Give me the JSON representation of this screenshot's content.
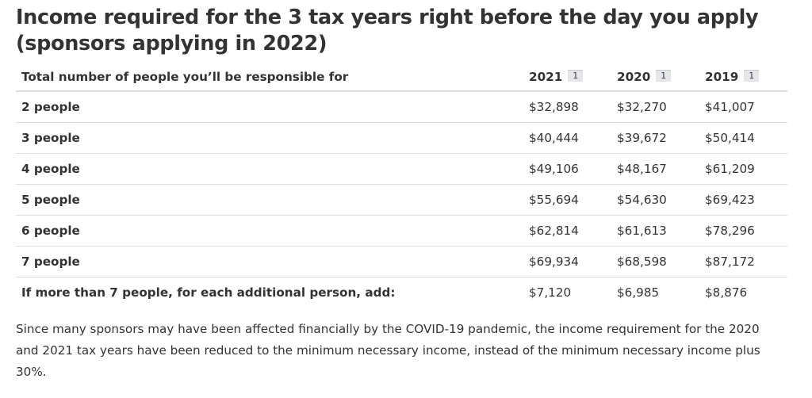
{
  "title": "Income required for the 3 tax years right before the day you apply (sponsors applying in 2022)",
  "table": {
    "header": {
      "label": "Total number of people you’ll be responsible for",
      "years": [
        {
          "year": "2021",
          "footnote": "1"
        },
        {
          "year": "2020",
          "footnote": "1"
        },
        {
          "year": "2019",
          "footnote": "1"
        }
      ]
    },
    "rows": [
      {
        "label": "2 people",
        "values": [
          "$32,898",
          "$32,270",
          "$41,007"
        ]
      },
      {
        "label": "3 people",
        "values": [
          "$40,444",
          "$39,672",
          "$50,414"
        ]
      },
      {
        "label": "4 people",
        "values": [
          "$49,106",
          "$48,167",
          "$61,209"
        ]
      },
      {
        "label": "5 people",
        "values": [
          "$55,694",
          "$54,630",
          "$69,423"
        ]
      },
      {
        "label": "6 people",
        "values": [
          "$62,814",
          "$61,613",
          "$78,296"
        ]
      },
      {
        "label": "7 people",
        "values": [
          "$69,934",
          "$68,598",
          "$87,172"
        ]
      },
      {
        "label": "If more than 7 people, for each additional person, add:",
        "values": [
          "$7,120",
          "$6,985",
          "$8,876"
        ]
      }
    ]
  },
  "note": "Since many sponsors may have been affected financially by the COVID-19 pandemic, the income requirement for the 2020 and 2021 tax years have been reduced to the minimum necessary income, instead of the minimum necessary income plus 30%."
}
